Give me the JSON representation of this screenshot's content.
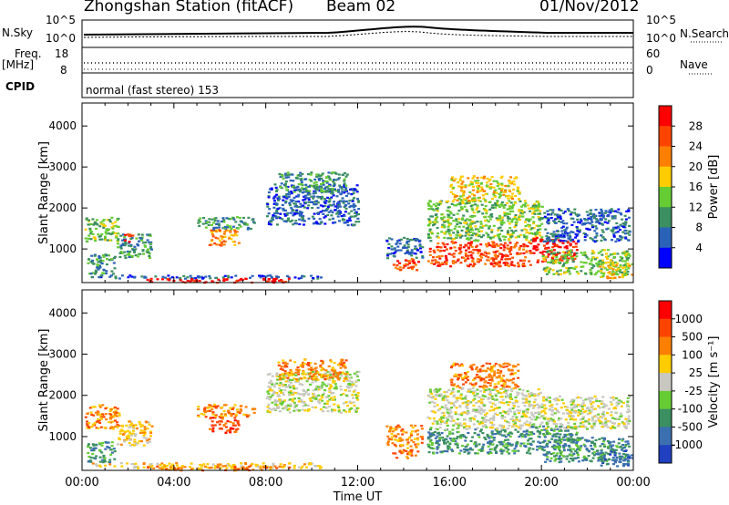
{
  "header": {
    "station": "Zhongshan Station (fitACF)",
    "beam": "Beam 02",
    "date": "01/Nov/2012"
  },
  "summary": {
    "nsky_label": "N.Sky",
    "nsky_ticks": [
      "10^5",
      "10^0"
    ],
    "nsearch_label": "N.Search",
    "nsearch_ticks": [
      "10^5",
      "10^0"
    ],
    "freq_label": "Freq.",
    "freq_unit": "[MHz]",
    "freq_ticks": [
      "18",
      "8"
    ],
    "nave_label": "Nave",
    "nave_ticks": [
      "60",
      "0"
    ],
    "cpid_label": "CPID",
    "cpid_text": "normal (fast stereo) 153"
  },
  "chart_data": [
    {
      "type": "heatmap",
      "name": "power",
      "ylabel": "Slant Range [km]",
      "y_ticks": [
        "1000",
        "2000",
        "3000",
        "4000"
      ],
      "ylim": [
        180,
        4560
      ],
      "xlim": [
        0,
        24
      ],
      "colorbar": {
        "label": "Power [dB]",
        "ticks": [
          "4",
          "8",
          "12",
          "16",
          "20",
          "24",
          "28"
        ],
        "colors": [
          "#0000ff",
          "#2a62b8",
          "#3b8f60",
          "#66cc33",
          "#ffcc00",
          "#ff8000",
          "#ff4400",
          "#ff0000"
        ]
      },
      "regions": [
        {
          "t0": 0.1,
          "t1": 1.6,
          "r0": 1200,
          "r1": 1800,
          "level": 3
        },
        {
          "t0": 0.2,
          "t1": 1.4,
          "r0": 400,
          "r1": 900,
          "level": 2
        },
        {
          "t0": 1.5,
          "t1": 3.0,
          "r0": 800,
          "r1": 1400,
          "level": 2
        },
        {
          "t0": 1.8,
          "t1": 2.2,
          "r0": 1200,
          "r1": 1400,
          "level": 7
        },
        {
          "t0": 0.3,
          "t1": 10.5,
          "r0": 300,
          "r1": 380,
          "level": 1
        },
        {
          "t0": 2.8,
          "t1": 9.0,
          "r0": 200,
          "r1": 300,
          "level": 7
        },
        {
          "t0": 5.5,
          "t1": 6.8,
          "r0": 1100,
          "r1": 1500,
          "level": 5
        },
        {
          "t0": 5.0,
          "t1": 7.5,
          "r0": 1500,
          "r1": 1800,
          "level": 2
        },
        {
          "t0": 8.0,
          "t1": 12.0,
          "r0": 1600,
          "r1": 2600,
          "level": 1
        },
        {
          "t0": 8.5,
          "t1": 11.5,
          "r0": 2400,
          "r1": 2900,
          "level": 2
        },
        {
          "t0": 13.5,
          "t1": 14.6,
          "r0": 500,
          "r1": 800,
          "level": 6
        },
        {
          "t0": 13.2,
          "t1": 14.8,
          "r0": 800,
          "r1": 1300,
          "level": 1
        },
        {
          "t0": 15.0,
          "t1": 19.5,
          "r0": 600,
          "r1": 1200,
          "level": 6
        },
        {
          "t0": 15.0,
          "t1": 20.0,
          "r0": 1200,
          "r1": 2200,
          "level": 3
        },
        {
          "t0": 16.0,
          "t1": 19.0,
          "r0": 2200,
          "r1": 2800,
          "level": 4
        },
        {
          "t0": 19.5,
          "t1": 21.5,
          "r0": 700,
          "r1": 1300,
          "level": 7
        },
        {
          "t0": 20.0,
          "t1": 23.8,
          "r0": 400,
          "r1": 1000,
          "level": 3
        },
        {
          "t0": 20.0,
          "t1": 23.8,
          "r0": 1200,
          "r1": 2000,
          "level": 1
        },
        {
          "t0": 22.5,
          "t1": 23.9,
          "r0": 300,
          "r1": 700,
          "level": 4
        }
      ]
    },
    {
      "type": "heatmap",
      "name": "velocity",
      "xlabel": "Time UT",
      "ylabel": "Slant Range [km]",
      "x_ticks": [
        "00:00",
        "04:00",
        "08:00",
        "12:00",
        "16:00",
        "20:00",
        "00:00"
      ],
      "y_ticks": [
        "1000",
        "2000",
        "3000",
        "4000"
      ],
      "ylim": [
        180,
        4560
      ],
      "xlim": [
        0,
        24
      ],
      "colorbar": {
        "label": "Velocity [m s⁻¹]",
        "ticks": [
          "1000",
          "500",
          "100",
          "25",
          "-25",
          "-100",
          "-500",
          "-1000"
        ],
        "colors": [
          "#2040c0",
          "#3b6fb0",
          "#3b8f60",
          "#66cc33",
          "#c8c8c0",
          "#ffcc00",
          "#ff8000",
          "#ff4400",
          "#ff0000"
        ]
      },
      "regions": [
        {
          "t0": 0.1,
          "t1": 1.6,
          "r0": 1200,
          "r1": 1800,
          "level": 6
        },
        {
          "t0": 0.2,
          "t1": 1.4,
          "r0": 400,
          "r1": 900,
          "level": 2
        },
        {
          "t0": 1.5,
          "t1": 3.0,
          "r0": 800,
          "r1": 1400,
          "level": 5
        },
        {
          "t0": 0.3,
          "t1": 10.5,
          "r0": 250,
          "r1": 380,
          "level": 5
        },
        {
          "t0": 2.8,
          "t1": 9.0,
          "r0": 200,
          "r1": 300,
          "level": 6
        },
        {
          "t0": 5.5,
          "t1": 6.8,
          "r0": 1100,
          "r1": 1500,
          "level": 7
        },
        {
          "t0": 5.0,
          "t1": 7.5,
          "r0": 1500,
          "r1": 1800,
          "level": 6
        },
        {
          "t0": 8.0,
          "t1": 12.0,
          "r0": 1600,
          "r1": 2600,
          "level": 4
        },
        {
          "t0": 8.5,
          "t1": 11.5,
          "r0": 2400,
          "r1": 2900,
          "level": 6
        },
        {
          "t0": 13.5,
          "t1": 14.6,
          "r0": 500,
          "r1": 800,
          "level": 6
        },
        {
          "t0": 13.2,
          "t1": 14.8,
          "r0": 800,
          "r1": 1300,
          "level": 6
        },
        {
          "t0": 15.0,
          "t1": 19.5,
          "r0": 600,
          "r1": 1200,
          "level": 2
        },
        {
          "t0": 15.0,
          "t1": 20.0,
          "r0": 1200,
          "r1": 2200,
          "level": 4
        },
        {
          "t0": 16.0,
          "t1": 19.0,
          "r0": 2200,
          "r1": 2800,
          "level": 6
        },
        {
          "t0": 19.5,
          "t1": 21.5,
          "r0": 700,
          "r1": 1300,
          "level": 2
        },
        {
          "t0": 20.0,
          "t1": 23.8,
          "r0": 400,
          "r1": 1000,
          "level": 2
        },
        {
          "t0": 20.0,
          "t1": 23.8,
          "r0": 1200,
          "r1": 2000,
          "level": 4
        },
        {
          "t0": 22.5,
          "t1": 23.9,
          "r0": 300,
          "r1": 700,
          "level": 1
        }
      ]
    }
  ]
}
